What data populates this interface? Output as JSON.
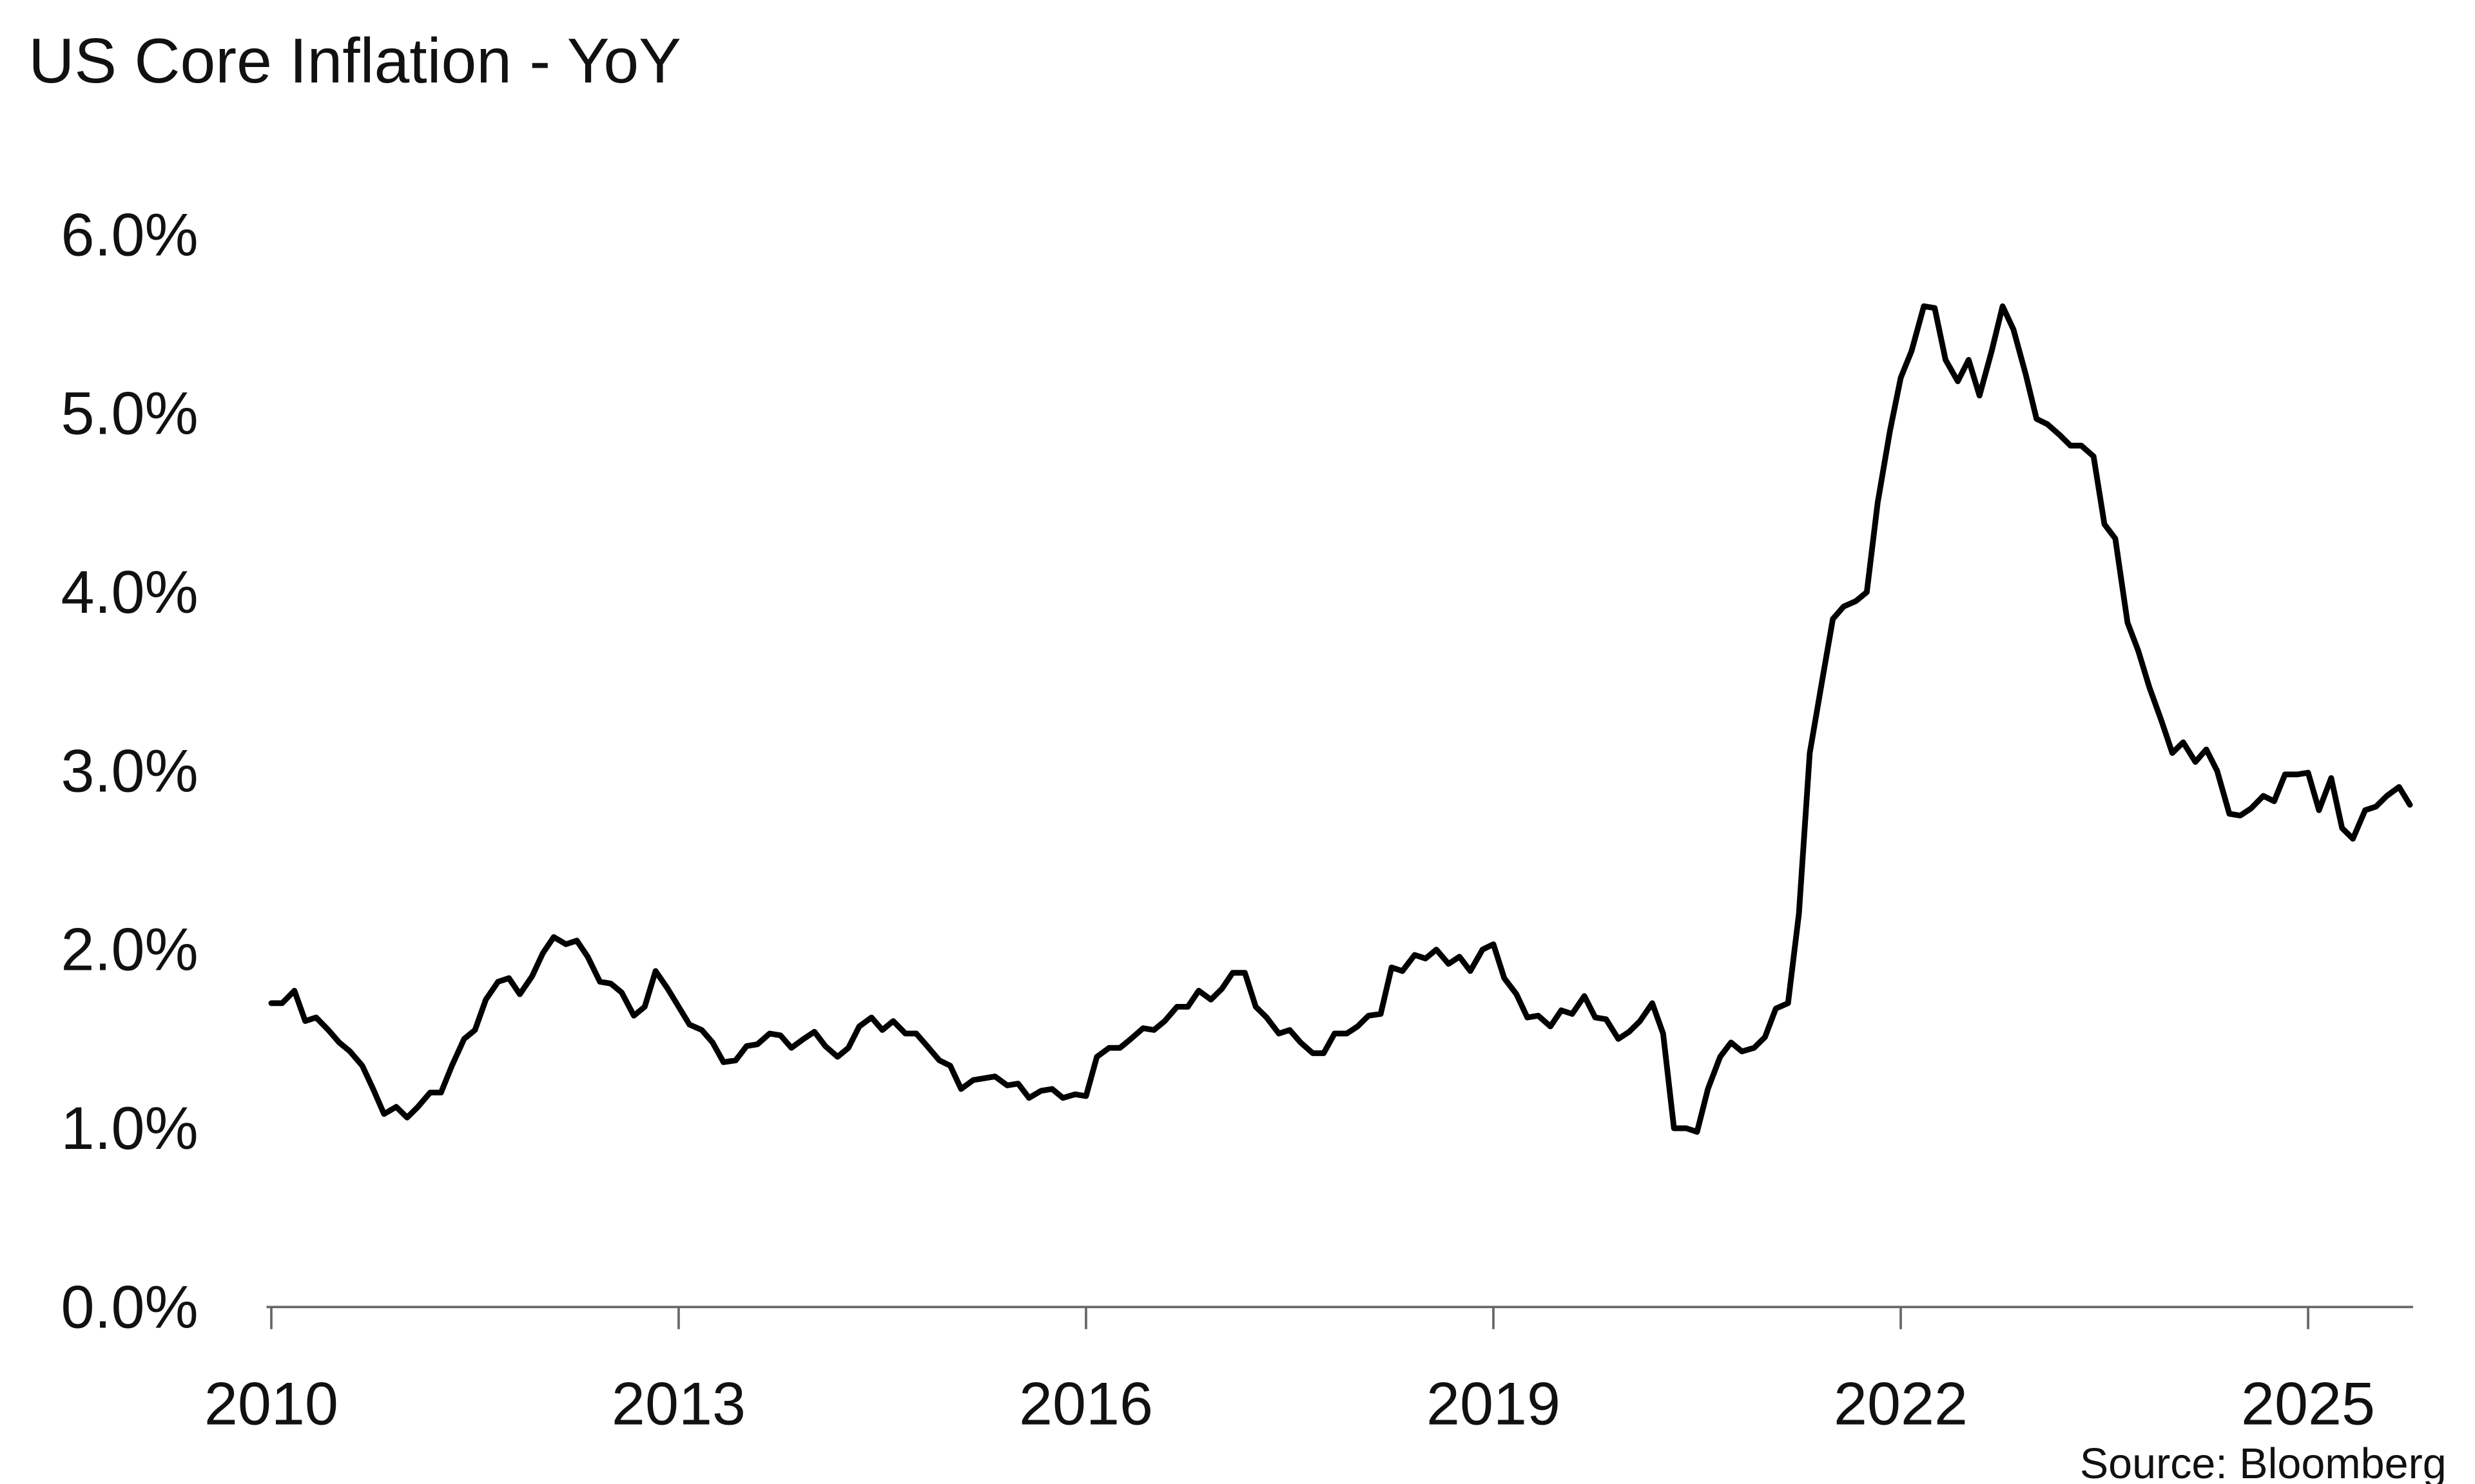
{
  "chart_data": {
    "type": "line",
    "title": "US Core Inflation - YoY",
    "source": "Source: Bloomberg",
    "color": "#000000",
    "xlim": [
      2010,
      2025.75
    ],
    "xticks": [
      2010,
      2013,
      2016,
      2019,
      2022,
      2025
    ],
    "ylim": [
      0,
      6
    ],
    "yticks": [
      {
        "value": 0,
        "label": "0.0%"
      },
      {
        "value": 1,
        "label": "1.0%"
      },
      {
        "value": 2,
        "label": "2.0%"
      },
      {
        "value": 3,
        "label": "3.0%"
      },
      {
        "value": 4,
        "label": "4.0%"
      },
      {
        "value": 5,
        "label": "5.0%"
      },
      {
        "value": 6,
        "label": "6.0%"
      }
    ],
    "x": [
      2010.0,
      2010.08,
      2010.17,
      2010.25,
      2010.33,
      2010.42,
      2010.5,
      2010.58,
      2010.67,
      2010.75,
      2010.83,
      2010.92,
      2011.0,
      2011.08,
      2011.17,
      2011.25,
      2011.33,
      2011.42,
      2011.5,
      2011.58,
      2011.67,
      2011.75,
      2011.83,
      2011.92,
      2012.0,
      2012.08,
      2012.17,
      2012.25,
      2012.33,
      2012.42,
      2012.5,
      2012.58,
      2012.67,
      2012.75,
      2012.83,
      2012.92,
      2013.0,
      2013.08,
      2013.17,
      2013.25,
      2013.33,
      2013.42,
      2013.5,
      2013.58,
      2013.67,
      2013.75,
      2013.83,
      2013.92,
      2014.0,
      2014.08,
      2014.17,
      2014.25,
      2014.33,
      2014.42,
      2014.5,
      2014.58,
      2014.67,
      2014.75,
      2014.83,
      2014.92,
      2015.0,
      2015.08,
      2015.17,
      2015.25,
      2015.33,
      2015.42,
      2015.5,
      2015.58,
      2015.67,
      2015.75,
      2015.83,
      2015.92,
      2016.0,
      2016.08,
      2016.17,
      2016.25,
      2016.33,
      2016.42,
      2016.5,
      2016.58,
      2016.67,
      2016.75,
      2016.83,
      2016.92,
      2017.0,
      2017.08,
      2017.17,
      2017.25,
      2017.33,
      2017.42,
      2017.5,
      2017.58,
      2017.67,
      2017.75,
      2017.83,
      2017.92,
      2018.0,
      2018.08,
      2018.17,
      2018.25,
      2018.33,
      2018.42,
      2018.5,
      2018.58,
      2018.67,
      2018.75,
      2018.83,
      2018.92,
      2019.0,
      2019.08,
      2019.17,
      2019.25,
      2019.33,
      2019.42,
      2019.5,
      2019.58,
      2019.67,
      2019.75,
      2019.83,
      2019.92,
      2020.0,
      2020.08,
      2020.17,
      2020.25,
      2020.33,
      2020.42,
      2020.5,
      2020.58,
      2020.67,
      2020.75,
      2020.83,
      2020.92,
      2021.0,
      2021.08,
      2021.17,
      2021.25,
      2021.33,
      2021.42,
      2021.5,
      2021.58,
      2021.67,
      2021.75,
      2021.83,
      2021.92,
      2022.0,
      2022.08,
      2022.17,
      2022.25,
      2022.33,
      2022.42,
      2022.5,
      2022.58,
      2022.67,
      2022.75,
      2022.83,
      2022.92,
      2023.0,
      2023.08,
      2023.17,
      2023.25,
      2023.33,
      2023.42,
      2023.5,
      2023.58,
      2023.67,
      2023.75,
      2023.83,
      2023.92,
      2024.0,
      2024.08,
      2024.17,
      2024.25,
      2024.33,
      2024.42,
      2024.5,
      2024.58,
      2024.67,
      2024.75,
      2024.83,
      2024.92,
      2025.0,
      2025.08,
      2025.17,
      2025.25,
      2025.33,
      2025.42,
      2025.5,
      2025.58,
      2025.67,
      2025.75
    ],
    "values": [
      1.7,
      1.7,
      1.77,
      1.6,
      1.62,
      1.55,
      1.48,
      1.43,
      1.35,
      1.22,
      1.08,
      1.12,
      1.06,
      1.12,
      1.2,
      1.2,
      1.35,
      1.5,
      1.55,
      1.72,
      1.82,
      1.84,
      1.75,
      1.85,
      1.98,
      2.07,
      2.03,
      2.05,
      1.96,
      1.82,
      1.81,
      1.76,
      1.63,
      1.68,
      1.88,
      1.78,
      1.68,
      1.58,
      1.55,
      1.48,
      1.37,
      1.38,
      1.46,
      1.47,
      1.53,
      1.52,
      1.45,
      1.5,
      1.54,
      1.46,
      1.4,
      1.45,
      1.57,
      1.62,
      1.55,
      1.6,
      1.53,
      1.53,
      1.46,
      1.38,
      1.35,
      1.22,
      1.27,
      1.28,
      1.29,
      1.24,
      1.25,
      1.17,
      1.21,
      1.22,
      1.17,
      1.19,
      1.18,
      1.4,
      1.45,
      1.45,
      1.5,
      1.56,
      1.55,
      1.6,
      1.68,
      1.68,
      1.77,
      1.72,
      1.78,
      1.87,
      1.87,
      1.68,
      1.62,
      1.53,
      1.55,
      1.48,
      1.42,
      1.42,
      1.53,
      1.53,
      1.57,
      1.63,
      1.64,
      1.9,
      1.88,
      1.97,
      1.95,
      2.0,
      1.92,
      1.96,
      1.88,
      2.0,
      2.03,
      1.84,
      1.75,
      1.62,
      1.63,
      1.57,
      1.66,
      1.64,
      1.74,
      1.62,
      1.61,
      1.5,
      1.54,
      1.6,
      1.7,
      1.53,
      1.0,
      1.0,
      0.98,
      1.22,
      1.4,
      1.48,
      1.43,
      1.45,
      1.51,
      1.67,
      1.7,
      2.2,
      3.1,
      3.5,
      3.85,
      3.92,
      3.95,
      4.0,
      4.5,
      4.9,
      5.2,
      5.35,
      5.6,
      5.59,
      5.3,
      5.18,
      5.3,
      5.1,
      5.35,
      5.6,
      5.47,
      5.22,
      4.97,
      4.94,
      4.88,
      4.82,
      4.82,
      4.76,
      4.38,
      4.3,
      3.83,
      3.67,
      3.47,
      3.28,
      3.1,
      3.16,
      3.05,
      3.12,
      3.0,
      2.76,
      2.75,
      2.79,
      2.86,
      2.83,
      2.98,
      2.98,
      2.99,
      2.78,
      2.96,
      2.68,
      2.62,
      2.78,
      2.8,
      2.86,
      2.91,
      2.81
    ]
  }
}
